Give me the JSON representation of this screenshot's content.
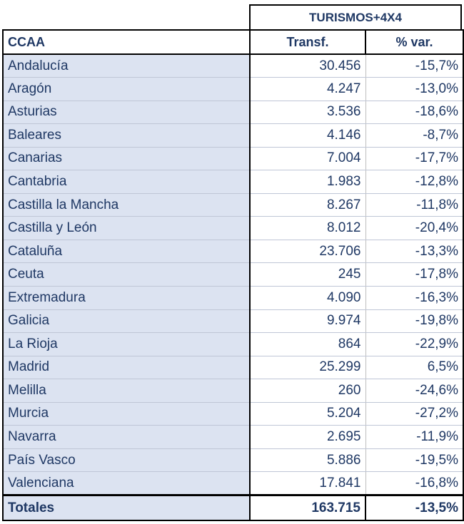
{
  "group_header": "TURISMOS+4X4",
  "columns": {
    "name": "CCAA",
    "transf": "Transf.",
    "var": "% var."
  },
  "rows": [
    {
      "name": "Andalucía",
      "transf": "30.456",
      "var": "-15,7%"
    },
    {
      "name": "Aragón",
      "transf": "4.247",
      "var": "-13,0%"
    },
    {
      "name": "Asturias",
      "transf": "3.536",
      "var": "-18,6%"
    },
    {
      "name": "Baleares",
      "transf": "4.146",
      "var": "-8,7%"
    },
    {
      "name": "Canarias",
      "transf": "7.004",
      "var": "-17,7%"
    },
    {
      "name": "Cantabria",
      "transf": "1.983",
      "var": "-12,8%"
    },
    {
      "name": "Castilla la Mancha",
      "transf": "8.267",
      "var": "-11,8%"
    },
    {
      "name": "Castilla y León",
      "transf": "8.012",
      "var": "-20,4%"
    },
    {
      "name": "Cataluña",
      "transf": "23.706",
      "var": "-13,3%"
    },
    {
      "name": "Ceuta",
      "transf": "245",
      "var": "-17,8%"
    },
    {
      "name": "Extremadura",
      "transf": "4.090",
      "var": "-16,3%"
    },
    {
      "name": "Galicia",
      "transf": "9.974",
      "var": "-19,8%"
    },
    {
      "name": "La Rioja",
      "transf": "864",
      "var": "-22,9%"
    },
    {
      "name": "Madrid",
      "transf": "25.299",
      "var": "6,5%"
    },
    {
      "name": "Melilla",
      "transf": "260",
      "var": "-24,6%"
    },
    {
      "name": "Murcia",
      "transf": "5.204",
      "var": "-27,2%"
    },
    {
      "name": "Navarra",
      "transf": "2.695",
      "var": "-11,9%"
    },
    {
      "name": "País Vasco",
      "transf": "5.886",
      "var": "-19,5%"
    },
    {
      "name": "Valenciana",
      "transf": "17.841",
      "var": "-16,8%"
    }
  ],
  "totals": {
    "name": "Totales",
    "transf": "163.715",
    "var": "-13,5%"
  }
}
